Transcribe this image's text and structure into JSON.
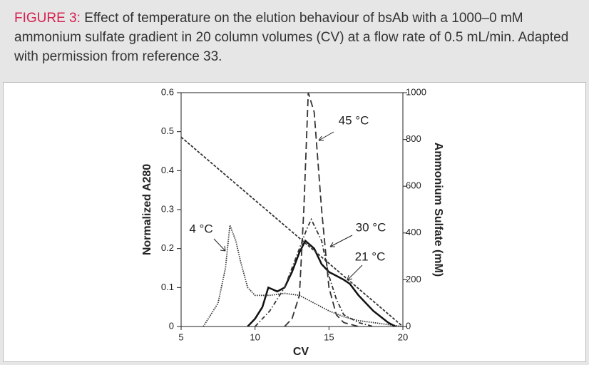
{
  "caption": {
    "label": "FIGURE 3:",
    "text": "Effect of temperature on the elution behaviour of bsAb with a 1000–0 mM ammonium sulfate gradient in 20 column volumes (CV) at a flow rate of 0.5 mL/min. Adapted with permission from reference 33."
  },
  "chart_data": {
    "type": "line",
    "xlabel": "CV",
    "ylabel": "Normalized A280",
    "y2label": "Ammonium Sulfate (mM)",
    "xlim": [
      5,
      20
    ],
    "xticks": [
      5,
      10,
      15,
      20
    ],
    "ylim": [
      0,
      0.6
    ],
    "yticks": [
      0,
      0.1,
      0.2,
      0.3,
      0.4,
      0.5,
      0.6
    ],
    "y2lim": [
      0,
      1000
    ],
    "y2ticks": [
      0,
      200,
      400,
      600,
      800,
      1000
    ],
    "series": [
      {
        "name": "4 °C",
        "color": "#333333",
        "dash": "1.5,1.5",
        "x": [
          6.5,
          7,
          7.5,
          8,
          8.3,
          8.7,
          9,
          9.5,
          10,
          11,
          12,
          13,
          14,
          15,
          16,
          17,
          18,
          19,
          20
        ],
        "values": [
          0,
          0.03,
          0.06,
          0.15,
          0.26,
          0.22,
          0.17,
          0.1,
          0.08,
          0.08,
          0.085,
          0.08,
          0.06,
          0.04,
          0.025,
          0.015,
          0.01,
          0.005,
          0
        ]
      },
      {
        "name": "21 °C",
        "color": "#111111",
        "dash": "",
        "width": 2.5,
        "x": [
          9.5,
          10,
          10.5,
          10.9,
          11.5,
          12,
          12.5,
          13,
          13.4,
          14,
          14.5,
          15,
          15.5,
          16,
          16.4,
          17,
          18,
          19,
          19.5
        ],
        "values": [
          0,
          0.02,
          0.05,
          0.1,
          0.09,
          0.1,
          0.14,
          0.19,
          0.22,
          0.2,
          0.16,
          0.14,
          0.13,
          0.12,
          0.11,
          0.08,
          0.04,
          0.01,
          0
        ]
      },
      {
        "name": "30 °C",
        "color": "#333333",
        "dash": "6,3,1.5,3",
        "x": [
          10,
          11,
          12,
          12.5,
          13,
          13.5,
          13.8,
          14.5,
          15,
          15.5,
          16,
          17,
          18
        ],
        "values": [
          0,
          0.04,
          0.1,
          0.15,
          0.2,
          0.25,
          0.275,
          0.22,
          0.13,
          0.07,
          0.03,
          0.01,
          0
        ]
      },
      {
        "name": "45 °C",
        "color": "#333333",
        "dash": "10,5",
        "x": [
          12,
          12.5,
          13,
          13.3,
          13.6,
          14,
          14.5,
          15,
          15.5,
          16,
          17
        ],
        "values": [
          0,
          0.02,
          0.08,
          0.3,
          0.6,
          0.55,
          0.3,
          0.1,
          0.03,
          0.01,
          0
        ]
      },
      {
        "name": "Ammonium Sulfate",
        "color": "#333333",
        "dash": "4,2",
        "axis": "y2",
        "x": [
          5,
          20
        ],
        "values": [
          810,
          0
        ]
      }
    ]
  }
}
